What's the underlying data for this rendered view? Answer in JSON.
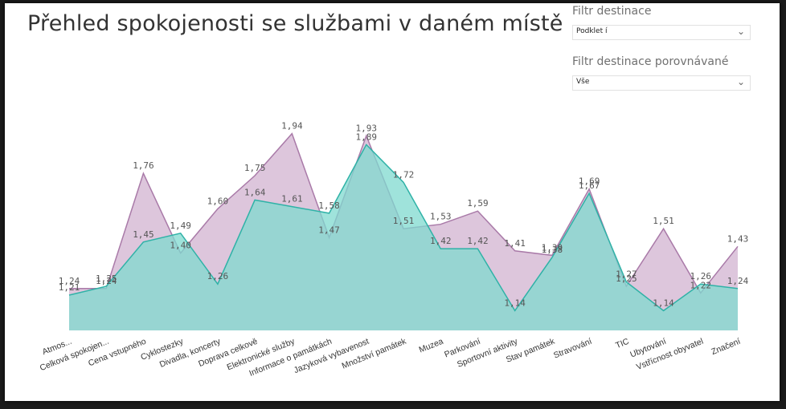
{
  "report": {
    "title": "Přehled spokojenosti se službami v daném místě"
  },
  "filters": [
    {
      "label": "Filtr destinace",
      "value": "Podklet í"
    },
    {
      "label": "Filtr destinace porovnávané",
      "value": "Vše"
    }
  ],
  "colors": {
    "series1_fill": "#d7bcd6",
    "series1_line": "#a97aa8",
    "series2_fill": "#7fd9cf",
    "series2_line": "#2fb2a7"
  },
  "chart_data": {
    "type": "area",
    "categories": [
      "Atmos...",
      "Celková spokojen...",
      "Cena vstupného",
      "Cyklostezky",
      "Divadla, koncerty",
      "Doprava celkově",
      "Elektronické služby",
      "Informace o památkách",
      "Jazyková vybavenost",
      "Množství památek",
      "Muzea",
      "Parkování",
      "Sportovní aktivity",
      "Stav památek",
      "Stravování",
      "TIC",
      "Ubytování",
      "Vstřícnost obyvatel",
      "Značení"
    ],
    "series": [
      {
        "values": [
          1.24,
          1.24,
          1.76,
          1.4,
          1.6,
          1.75,
          1.94,
          1.47,
          1.93,
          1.51,
          1.53,
          1.59,
          1.41,
          1.39,
          1.69,
          1.25,
          1.51,
          1.22,
          1.43
        ],
        "labels": [
          "1,24",
          "1,24",
          "1,76",
          "1,40",
          "1,60",
          "1,75",
          "1,94",
          "1,47",
          "1,93",
          "1,51",
          "1,53",
          "1,59",
          "1,41",
          "1,39",
          "1,69",
          "1,25",
          "1,51",
          "1,22",
          "1,43"
        ]
      },
      {
        "values": [
          1.21,
          1.25,
          1.45,
          1.49,
          1.26,
          1.64,
          1.61,
          1.58,
          1.89,
          1.72,
          1.42,
          1.42,
          1.14,
          1.38,
          1.67,
          1.27,
          1.14,
          1.26,
          1.24
        ],
        "labels": [
          "1,21",
          "1,25",
          "1,45",
          "1,49",
          "1,26",
          "1,64",
          "1,61",
          "1,58",
          "1,89",
          "1,72",
          "1,42",
          "1,42",
          "1,14",
          "1,38",
          "1,67",
          "1,27",
          "1,14",
          "1,26",
          "1,24"
        ]
      }
    ],
    "ylim": [
      1.0,
      2.0
    ],
    "grid": false
  }
}
